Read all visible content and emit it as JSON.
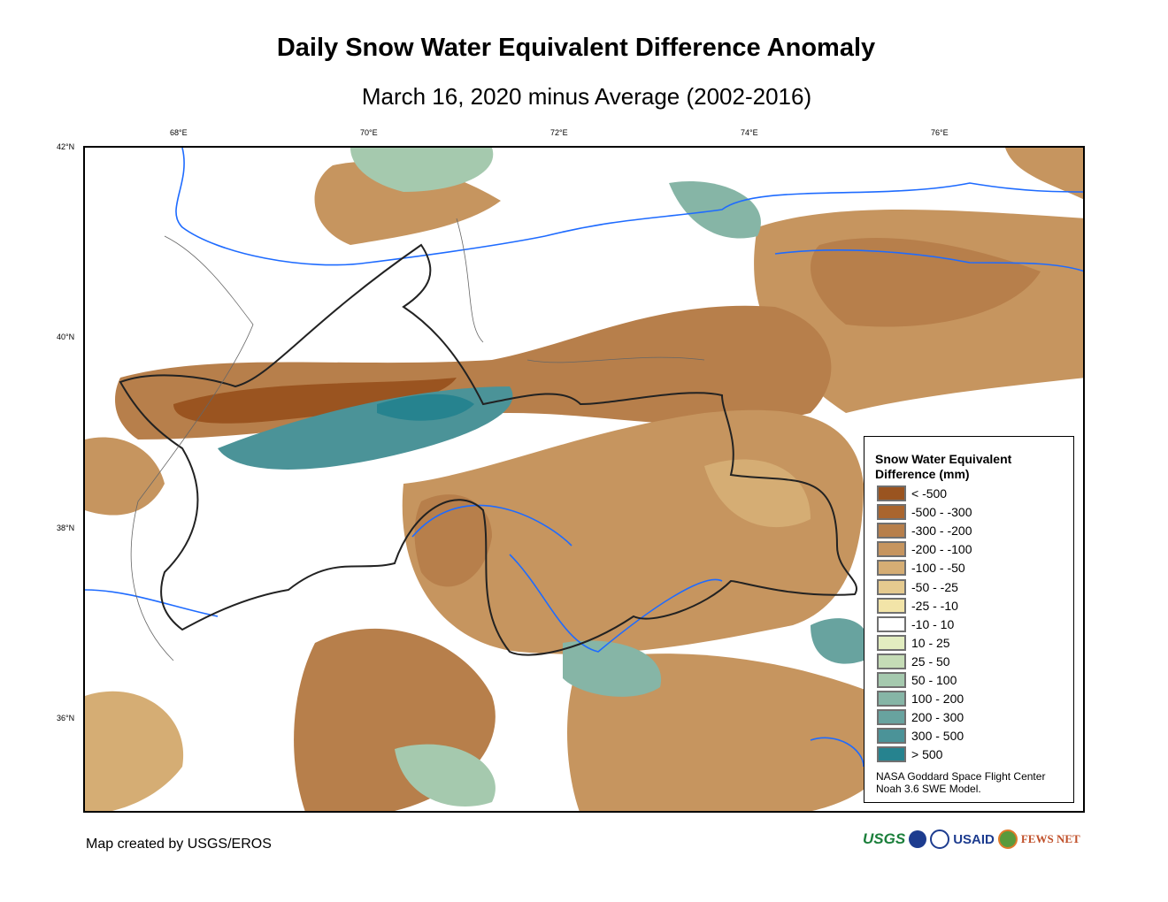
{
  "title": "Daily Snow Water Equivalent Difference Anomaly",
  "subtitle": "March 16, 2020 minus Average (2002-2016)",
  "axes": {
    "longitude_labels": [
      "68°E",
      "70°E",
      "72°E",
      "74°E",
      "76°E"
    ],
    "latitude_labels": [
      "42°N",
      "40°N",
      "38°N",
      "36°N"
    ]
  },
  "legend": {
    "title_line1": "Snow Water Equivalent",
    "title_line2": "Difference (mm)",
    "items": [
      {
        "label": "< -500",
        "color": "#9a5420"
      },
      {
        "label": "-500 - -300",
        "color": "#a9652e"
      },
      {
        "label": "-300 - -200",
        "color": "#b77f4b"
      },
      {
        "label": "-200 - -100",
        "color": "#c6955f"
      },
      {
        "label": "-100 - -50",
        "color": "#d5ad74"
      },
      {
        "label": "-50 - -25",
        "color": "#e5ca8f"
      },
      {
        "label": "-25 - -10",
        "color": "#f2e4a8"
      },
      {
        "label": "-10 - 10",
        "color": "#ffffff"
      },
      {
        "label": "10 - 25",
        "color": "#e2edc0"
      },
      {
        "label": "25 - 50",
        "color": "#c5dcb6"
      },
      {
        "label": "50 - 100",
        "color": "#a5c9ae"
      },
      {
        "label": "100 - 200",
        "color": "#86b5a6"
      },
      {
        "label": "200 - 300",
        "color": "#68a39f"
      },
      {
        "label": "300 - 500",
        "color": "#4b9398"
      },
      {
        "label": "> 500",
        "color": "#26838f"
      }
    ],
    "credit_line1": "NASA Goddard Space Flight Center",
    "credit_line2": "Noah 3.6 SWE Model."
  },
  "footer": {
    "credit": "Map created by USGS/EROS"
  },
  "logos": [
    "USGS",
    "NASA",
    "USAID",
    "FEWS NET"
  ]
}
